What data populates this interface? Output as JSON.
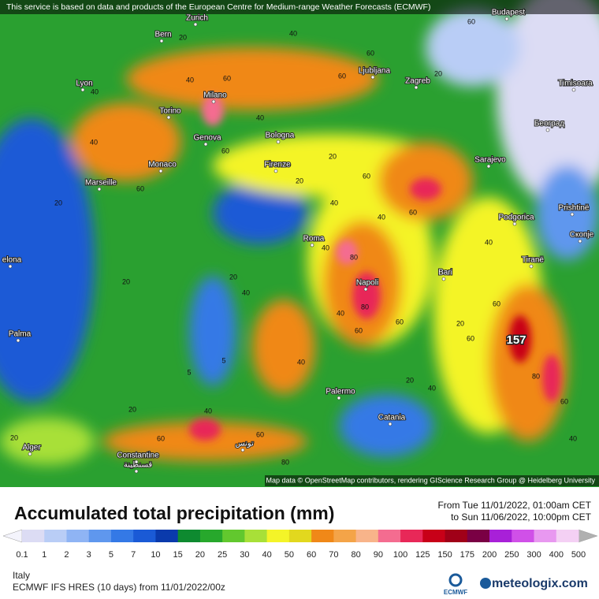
{
  "banner": "This service is based on data and products of the European Centre for Medium-range Weather Forecasts (ECMWF)",
  "attribution": "Map data © OpenStreetMap contributors, rendering GIScience Research Group @ Heidelberg University",
  "cities": [
    "Zurich",
    "Budapest",
    "Bern",
    "Lyon",
    "Milano",
    "Ljubljana",
    "Zagreb",
    "Timisoara",
    "Torino",
    "Genova",
    "Bologna",
    "Београд",
    "Monaco",
    "Firenze",
    "Sarajevo",
    "Marseille",
    "Podgorica",
    "Prishtinë",
    "Roma",
    "Скопје",
    "elona",
    "Tiranë",
    "Bari",
    "Napoli",
    "Palma",
    "Palermo",
    "Catania",
    "Alger",
    "Constantine",
    "قسنطينة",
    "تونس"
  ],
  "max_value": 157,
  "contour_labels": [
    40,
    60,
    20,
    60,
    40,
    60,
    60,
    20,
    40,
    40,
    20,
    40,
    60,
    60,
    20,
    20,
    40,
    60,
    40,
    60,
    80,
    40,
    40,
    60,
    60,
    20,
    20,
    40,
    40,
    60,
    80,
    80,
    60,
    40,
    20,
    20,
    40,
    60,
    60,
    80,
    60,
    40,
    20,
    5,
    5,
    20,
    40
  ],
  "title": "Accumulated total precipitation (mm)",
  "period_from": "From Tue 11/01/2022, 01:00am CET",
  "period_to": "to Sun 11/06/2022, 10:00pm CET",
  "legend": {
    "values": [
      0.1,
      1,
      2,
      3,
      5,
      7,
      10,
      15,
      20,
      25,
      30,
      40,
      50,
      60,
      70,
      80,
      90,
      100,
      125,
      150,
      175,
      200,
      250,
      300,
      400,
      500
    ],
    "colors": [
      "#dcdcf4",
      "#b9cdf6",
      "#8fb4f4",
      "#5f97ee",
      "#3479e6",
      "#1a5ad6",
      "#0a3aac",
      "#0e8a30",
      "#27a82c",
      "#62c82e",
      "#a8e038",
      "#f4f428",
      "#e2d81e",
      "#f08818",
      "#f4a448",
      "#f8b48a",
      "#f46c90",
      "#e82858",
      "#c80018",
      "#a00018",
      "#7a0044",
      "#a820d8",
      "#d050e8",
      "#e898f0",
      "#f4d0f4"
    ]
  },
  "region": "Italy",
  "model": "ECMWF IFS HRES (10 days) from 11/01/2022/00z",
  "logo_ecmwf": "ECMWF",
  "logo_brand": "meteologix.com"
}
